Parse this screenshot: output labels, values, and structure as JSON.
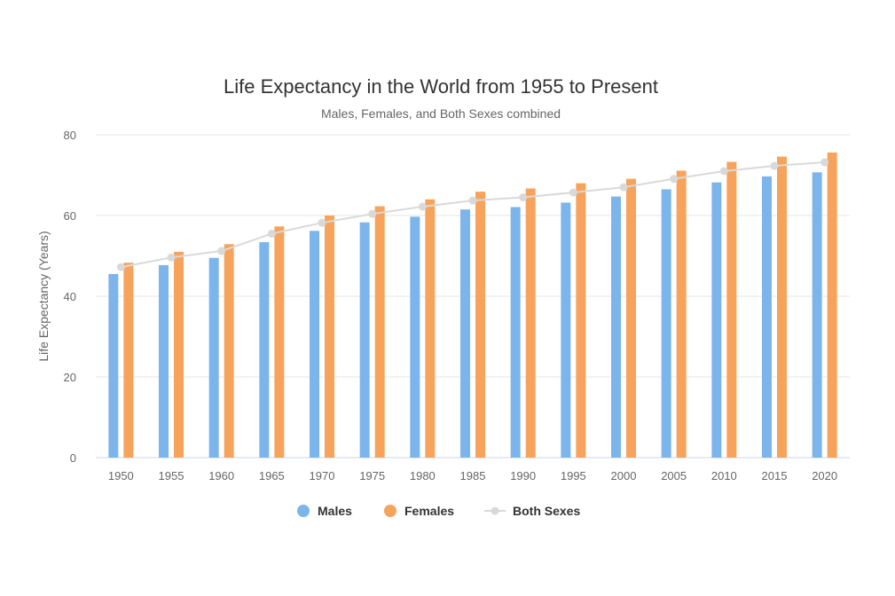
{
  "chart_data": {
    "type": "bar",
    "title": "Life Expectancy in the World from 1955 to Present",
    "subtitle": "Males, Females, and Both Sexes combined",
    "xlabel": "",
    "ylabel": "Life Expectancy (Years)",
    "ylim": [
      0,
      80
    ],
    "yticks": [
      "0",
      "20",
      "40",
      "60",
      "80"
    ],
    "grid": true,
    "legend_position": "bottom-center",
    "categories": [
      "1950",
      "1955",
      "1960",
      "1965",
      "1970",
      "1975",
      "1980",
      "1985",
      "1990",
      "1995",
      "2000",
      "2005",
      "2010",
      "2015",
      "2020"
    ],
    "series": [
      {
        "name": "Males",
        "kind": "bar",
        "color": "#7cb5ec",
        "values": [
          45.5,
          47.7,
          49.5,
          53.4,
          56.2,
          58.3,
          59.7,
          61.5,
          62.1,
          63.2,
          64.7,
          66.5,
          68.2,
          69.7,
          70.7
        ]
      },
      {
        "name": "Females",
        "kind": "bar",
        "color": "#f7a35c",
        "values": [
          48.3,
          51.0,
          52.9,
          57.3,
          60.0,
          62.3,
          64.0,
          65.9,
          66.7,
          68.0,
          69.1,
          71.1,
          73.3,
          74.6,
          75.6
        ]
      },
      {
        "name": "Both Sexes",
        "kind": "line",
        "color": "#d9d9d9",
        "values": [
          47.2,
          49.6,
          51.2,
          55.5,
          58.2,
          60.4,
          62.2,
          63.7,
          64.5,
          65.7,
          67.0,
          69.1,
          71.0,
          72.3,
          73.2
        ]
      }
    ]
  }
}
